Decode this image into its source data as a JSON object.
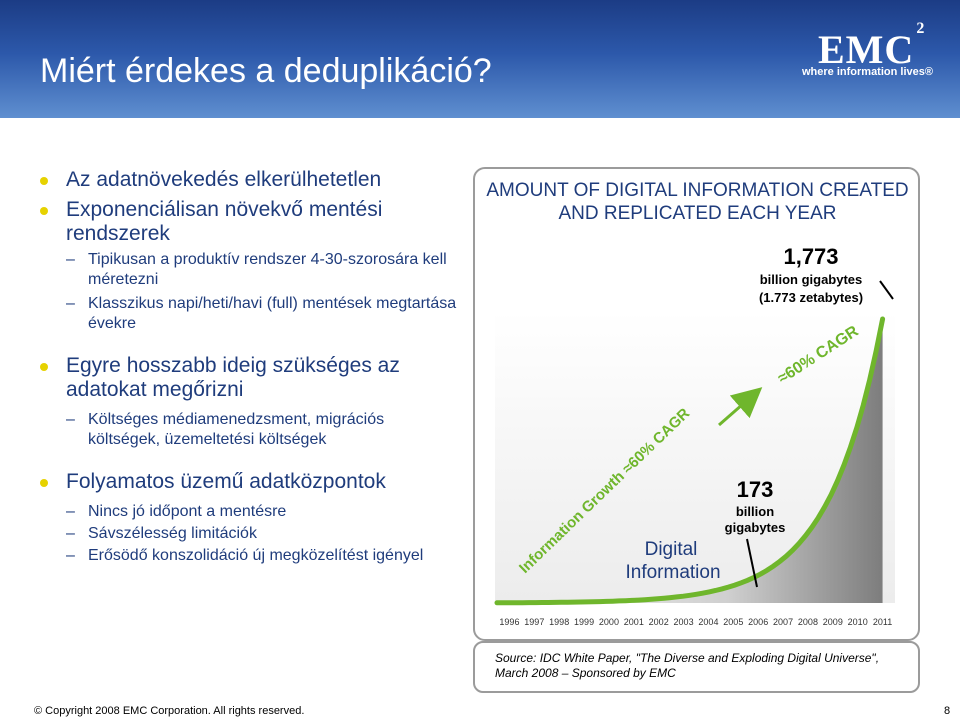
{
  "slide": {
    "title": "Miért érdekes a deduplikáció?",
    "page_number": "8",
    "footer": "© Copyright 2008 EMC Corporation. All rights reserved."
  },
  "logo": {
    "mark": "EMC",
    "superscript": "2",
    "tagline": "where information lives®"
  },
  "bullets": [
    {
      "text": "Az adatnövekedés elkerülhetetlen",
      "sub": []
    },
    {
      "text": "Exponenciálisan növekvő mentési rendszerek",
      "sub": [
        "Tipikusan a produktív rendszer 4-30-szorosára kell méretezni",
        "Klasszikus napi/heti/havi (full) mentések megtartása évekre"
      ]
    },
    {
      "text": "Egyre hosszabb ideig szükséges az adatokat megőrizni",
      "sub": [
        "Költséges médiamenedzsment, migrációs költségek, üzemeltetési költségek"
      ]
    },
    {
      "text": "Folyamatos üzemű adatközpontok",
      "sub": [
        "Nincs jó időpont a mentésre",
        "Sávszélesség limitációk",
        "Erősödő konszolidáció új megközelítést igényel"
      ]
    }
  ],
  "chart_data": {
    "type": "area",
    "title": "AMOUNT OF DIGITAL INFORMATION CREATED AND REPLICATED EACH YEAR",
    "x": [
      "1996",
      "1997",
      "1998",
      "1999",
      "2000",
      "2001",
      "2002",
      "2003",
      "2004",
      "2005",
      "2006",
      "2007",
      "2008",
      "2009",
      "2010",
      "2011"
    ],
    "series": [
      {
        "name": "Digital Information",
        "points": [
          {
            "x": "2006",
            "y": 173
          },
          {
            "x": "2011",
            "y": 1773
          }
        ]
      }
    ],
    "y_unit": "billion gigabytes",
    "annotations": {
      "end_value": "1,773",
      "end_unit": "billion gigabytes",
      "end_zetta": "(1.773 zetabytes)",
      "mid_value": "173",
      "mid_unit_1": "billion",
      "mid_unit_2": "gigabytes",
      "cagr_curve": "≈60% CAGR",
      "growth_arrow": "Information Growth ≈60% CAGR",
      "area_label_1": "Digital",
      "area_label_2": "Information"
    },
    "colors": {
      "area_light": "#e8e8e8",
      "area_dark": "#8c8c8c",
      "curve": "#6fb62c",
      "text": "#1f3c7c"
    }
  },
  "source": "Source: IDC White Paper, \"The Diverse and Exploding Digital Universe\", March 2008 – Sponsored by EMC"
}
